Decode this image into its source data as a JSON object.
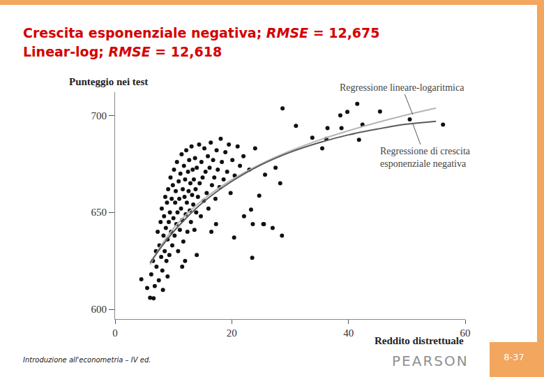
{
  "slide": {
    "title_lines": [
      [
        {
          "text": "Crescita esponenziale negativa; "
        },
        {
          "em": "RMSE"
        },
        {
          "text": " = 12,675"
        }
      ],
      [
        {
          "text": "Linear-log; "
        },
        {
          "em": "RMSE"
        },
        {
          "text": " = 12,618"
        }
      ]
    ],
    "footer": "Introduzione all'econometria – IV ed.",
    "publisher": "PEARSON",
    "page": "8-37"
  },
  "chart_data": {
    "type": "scatter",
    "x_label": "Reddito distrettuale",
    "y_label": "Punteggio nei test",
    "xlim": [
      0,
      60
    ],
    "xticks": [
      0,
      20,
      40,
      60
    ],
    "ylim": [
      595,
      712
    ],
    "yticks": [
      600,
      650,
      700
    ],
    "grid": false,
    "series": [
      {
        "type": "scatter",
        "marker": "circle",
        "color": "#111111",
        "x": [
          6.2,
          6.5,
          6.8,
          7.0,
          7.1,
          7.3,
          7.5,
          7.6,
          7.8,
          7.9,
          8.0,
          8.1,
          8.3,
          8.4,
          8.5,
          8.6,
          8.7,
          8.8,
          8.9,
          9.0,
          9.1,
          9.2,
          9.3,
          9.4,
          9.5,
          9.6,
          9.7,
          9.8,
          9.9,
          10.0,
          10.1,
          10.2,
          10.3,
          10.4,
          10.5,
          10.6,
          10.7,
          10.8,
          10.9,
          11.0,
          11.1,
          11.2,
          11.3,
          11.4,
          11.5,
          11.6,
          11.7,
          11.8,
          11.9,
          12.0,
          12.1,
          12.2,
          12.3,
          12.4,
          12.5,
          12.6,
          12.7,
          12.8,
          12.9,
          13.0,
          13.1,
          13.2,
          13.3,
          13.4,
          13.5,
          13.6,
          13.7,
          13.8,
          13.9,
          14.0,
          14.2,
          14.4,
          14.5,
          14.7,
          14.8,
          15.0,
          15.2,
          15.3,
          15.5,
          15.7,
          15.9,
          16.0,
          16.2,
          16.4,
          16.6,
          16.8,
          17.0,
          17.2,
          17.4,
          17.6,
          17.9,
          18.1,
          18.3,
          18.6,
          18.9,
          19.2,
          19.5,
          19.8,
          20.1,
          20.5,
          21.0,
          21.4,
          22.0,
          23.0,
          24.0,
          5.5,
          6.0,
          8.2,
          9.0,
          12.0,
          11.5,
          14.0,
          16.5,
          17.3,
          20.4,
          25.5,
          22.1,
          27.0,
          28.6,
          23.5,
          4.5,
          6.6,
          25.4,
          23.6,
          28.7,
          41.5,
          50.5,
          45.4,
          38.6,
          31.0,
          33.8,
          36.4,
          41.8,
          35.5,
          25.7,
          27.5,
          28.3,
          24.7,
          23.3,
          56.2,
          38.8,
          36.2,
          42.4,
          39.8
        ],
        "values": [
          618,
          625,
          612,
          630,
          622,
          640,
          615,
          633,
          645,
          627,
          652,
          620,
          638,
          648,
          630,
          658,
          642,
          625,
          655,
          636,
          662,
          645,
          628,
          650,
          668,
          640,
          657,
          633,
          664,
          647,
          672,
          638,
          655,
          661,
          644,
          676,
          650,
          630,
          666,
          657,
          641,
          670,
          652,
          680,
          646,
          662,
          635,
          674,
          658,
          667,
          649,
          682,
          655,
          640,
          671,
          661,
          677,
          651,
          665,
          645,
          684,
          659,
          672,
          654,
          667,
          641,
          678,
          662,
          650,
          673,
          658,
          685,
          665,
          648,
          676,
          668,
          656,
          683,
          671,
          660,
          679,
          652,
          673,
          686,
          664,
          677,
          668,
          657,
          682,
          672,
          663,
          688,
          676,
          667,
          681,
          671,
          685,
          660,
          677,
          669,
          684,
          674,
          679,
          672,
          683,
          611,
          606,
          610,
          617,
          625,
          622,
          628,
          640,
          644,
          637,
          644,
          648,
          642,
          638,
          626.6,
          615.5,
          605.7,
          644,
          644,
          703.6,
          706,
          698,
          702,
          700,
          694.6,
          688.5,
          693.5,
          687.4,
          683,
          669.4,
          673,
          665,
          658.6,
          651.4,
          695.3,
          693.5,
          688,
          695.3,
          701.8
        ]
      },
      {
        "type": "line",
        "color": "#b5b5b5",
        "line_style": "solid",
        "x": [
          6,
          8,
          10,
          12,
          15,
          20,
          25,
          30,
          35,
          40,
          45,
          50,
          55
        ],
        "values": [
          623.1,
          633.5,
          641.7,
          648.3,
          656.4,
          666.9,
          675.0,
          681.7,
          687.3,
          692.1,
          696.4,
          700.3,
          703.8
        ]
      },
      {
        "type": "line",
        "color": "#5a5a5a",
        "line_style": "solid",
        "x": [
          6,
          8,
          10,
          12,
          15,
          20,
          25,
          30,
          35,
          40,
          45,
          50,
          55
        ],
        "values": [
          624,
          632.5,
          640,
          646.5,
          655,
          666,
          674.5,
          681,
          686,
          690,
          693,
          695.5,
          697
        ]
      }
    ],
    "annotations": [
      {
        "text": [
          "Regressione lineare-logaritmica"
        ],
        "x": 51,
        "y": 700.5
      },
      {
        "text": [
          "Regressione di crescita",
          "esponenziale negativa"
        ],
        "x": 51,
        "y": 695.8
      }
    ]
  }
}
